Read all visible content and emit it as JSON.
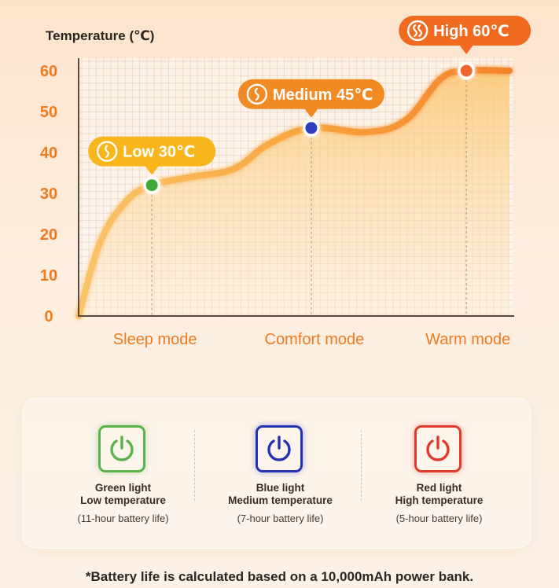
{
  "chart_data": {
    "type": "line",
    "ylabel": "Temperature (℃)",
    "y_ticks": [
      0,
      10,
      20,
      30,
      40,
      50,
      60
    ],
    "ylim": [
      0,
      60
    ],
    "categories": [
      "Sleep mode",
      "Comfort mode",
      "Warm mode"
    ],
    "x_range": [
      0,
      1
    ],
    "curve": [
      {
        "x": 0.0,
        "y": 0
      },
      {
        "x": 0.05,
        "y": 18
      },
      {
        "x": 0.11,
        "y": 28
      },
      {
        "x": 0.17,
        "y": 32
      },
      {
        "x": 0.26,
        "y": 34
      },
      {
        "x": 0.36,
        "y": 36
      },
      {
        "x": 0.44,
        "y": 42
      },
      {
        "x": 0.54,
        "y": 46
      },
      {
        "x": 0.67,
        "y": 45
      },
      {
        "x": 0.76,
        "y": 48
      },
      {
        "x": 0.84,
        "y": 58
      },
      {
        "x": 0.9,
        "y": 60
      },
      {
        "x": 1.0,
        "y": 60
      }
    ],
    "points": [
      {
        "x": 0.17,
        "y": 32,
        "color": "#3faa3b",
        "label": "Low 30℃",
        "badge_color": "#f8b51c"
      },
      {
        "x": 0.54,
        "y": 46,
        "color": "#2f3cc0",
        "label": "Medium 45℃",
        "badge_color": "#f28a23"
      },
      {
        "x": 0.9,
        "y": 60,
        "color": "#f0662b",
        "label": "High 60℃",
        "badge_color": "#f06a20"
      }
    ],
    "grid": true,
    "colors": {
      "tick": "#f07a1f",
      "category": "#f07a1f",
      "line": "#f6a13d",
      "fill": "#fbc977"
    }
  },
  "modes": [
    {
      "color": "#5ab34a",
      "line1": "Green light",
      "line2": "Low temperature",
      "line3": "(11-hour battery life)"
    },
    {
      "color": "#2433b0",
      "line1": "Blue light",
      "line2": "Medium temperature",
      "line3": "(7-hour battery life)"
    },
    {
      "color": "#e03a2c",
      "line1": "Red light",
      "line2": "High temperature",
      "line3": "(5-hour battery life)"
    }
  ],
  "icons": {
    "power": "power-icon",
    "heat": "heat-waves-icon"
  },
  "footnote": "*Battery life is calculated based on a 10,000mAh power bank."
}
